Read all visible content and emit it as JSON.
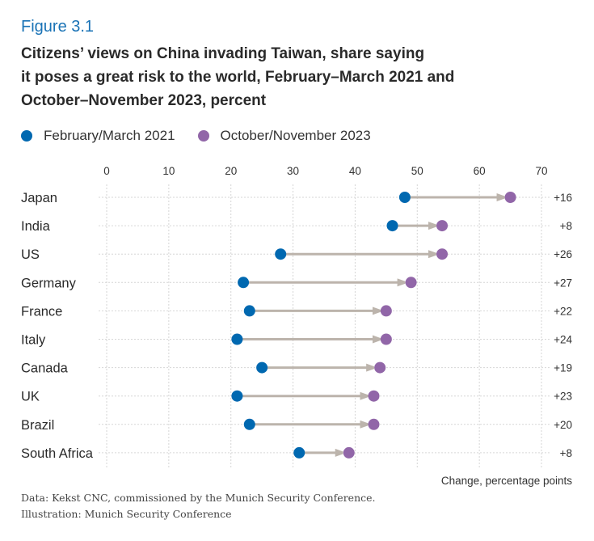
{
  "figure_label": "Figure 3.1",
  "title": "Citizens’ views on China invading Taiwan, share saying it poses a great risk to the world, February–March 2021 and October–November 2023, percent",
  "legend": [
    {
      "label": "February/March 2021",
      "color": "#0068b0"
    },
    {
      "label": "October/November 2023",
      "color": "#9166a8"
    }
  ],
  "chart_data": {
    "type": "dumbbell",
    "title": "Citizens’ views on China invading Taiwan, share saying it poses a great risk to the world, February–March 2021 and October–November 2023, percent",
    "xlabel": "",
    "ylabel": "",
    "xlim": [
      0,
      70
    ],
    "xticks": [
      0,
      10,
      20,
      30,
      40,
      50,
      60,
      70
    ],
    "grid": true,
    "legend_position": "top-left",
    "categories": [
      "Japan",
      "India",
      "US",
      "Germany",
      "France",
      "Italy",
      "Canada",
      "UK",
      "Brazil",
      "South Africa"
    ],
    "series": [
      {
        "name": "February/March 2021",
        "color": "#0068b0",
        "values": [
          48,
          46,
          28,
          22,
          23,
          21,
          25,
          21,
          23,
          31
        ]
      },
      {
        "name": "October/November 2023",
        "color": "#9166a8",
        "values": [
          65,
          54,
          54,
          49,
          45,
          45,
          44,
          43,
          43,
          39
        ]
      }
    ],
    "change_labels": [
      "+16",
      "+8",
      "+26",
      "+27",
      "+22",
      "+24",
      "+19",
      "+23",
      "+20",
      "+8"
    ],
    "change_axis_label": "Change, percentage points",
    "arrow_color": "#bcb4ac"
  },
  "footer": {
    "source": "Data: Kekst CNC, commissioned by the Munich Security Conference.",
    "illustration": "Illustration: Munich Security Conference"
  }
}
